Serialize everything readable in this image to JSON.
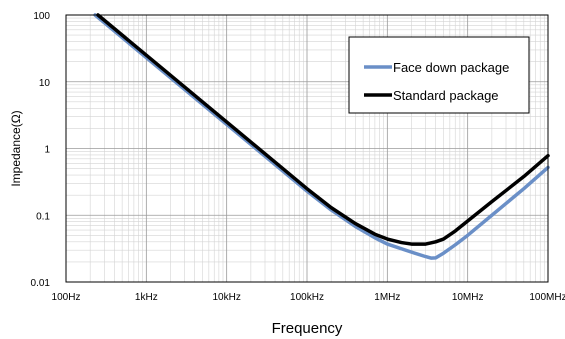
{
  "chart_data": {
    "type": "line",
    "xlabel": "Frequency",
    "ylabel": "Impedance(Ω)",
    "x_scale": "log",
    "y_scale": "log",
    "xlim": [
      100,
      100000000
    ],
    "ylim": [
      0.01,
      100
    ],
    "x_ticks": [
      {
        "value": 100,
        "label": "100Hz"
      },
      {
        "value": 1000,
        "label": "1kHz"
      },
      {
        "value": 10000,
        "label": "10kHz"
      },
      {
        "value": 100000,
        "label": "100kHz"
      },
      {
        "value": 1000000,
        "label": "1MHz"
      },
      {
        "value": 10000000,
        "label": "10MHz"
      },
      {
        "value": 100000000,
        "label": "100MHz"
      }
    ],
    "y_ticks": [
      {
        "value": 100,
        "label": "100"
      },
      {
        "value": 10,
        "label": "10"
      },
      {
        "value": 1,
        "label": "1"
      },
      {
        "value": 0.1,
        "label": "0.1"
      },
      {
        "value": 0.01,
        "label": "0.01"
      }
    ],
    "grid": true,
    "legend_position": "top-right",
    "series": [
      {
        "name": "Face down package",
        "color": "#6a8fc7",
        "points": [
          [
            230,
            100
          ],
          [
            1000,
            23
          ],
          [
            10000,
            2.3
          ],
          [
            100000,
            0.23
          ],
          [
            200000,
            0.12
          ],
          [
            400000,
            0.068
          ],
          [
            700000,
            0.046
          ],
          [
            1000000,
            0.037
          ],
          [
            2000000,
            0.028
          ],
          [
            3000000,
            0.024
          ],
          [
            3500000,
            0.0228
          ],
          [
            4000000,
            0.023
          ],
          [
            5000000,
            0.027
          ],
          [
            7000000,
            0.036
          ],
          [
            10000000,
            0.05
          ],
          [
            20000000,
            0.1
          ],
          [
            50000000,
            0.25
          ],
          [
            100000000,
            0.52
          ]
        ]
      },
      {
        "name": "Standard package",
        "color": "#000000",
        "points": [
          [
            250,
            100
          ],
          [
            1000,
            25
          ],
          [
            10000,
            2.5
          ],
          [
            100000,
            0.25
          ],
          [
            200000,
            0.13
          ],
          [
            400000,
            0.075
          ],
          [
            700000,
            0.052
          ],
          [
            1000000,
            0.044
          ],
          [
            1500000,
            0.039
          ],
          [
            2000000,
            0.037
          ],
          [
            3000000,
            0.037
          ],
          [
            4000000,
            0.04
          ],
          [
            5000000,
            0.044
          ],
          [
            7000000,
            0.058
          ],
          [
            10000000,
            0.082
          ],
          [
            20000000,
            0.16
          ],
          [
            50000000,
            0.38
          ],
          [
            100000000,
            0.78
          ]
        ]
      }
    ]
  }
}
